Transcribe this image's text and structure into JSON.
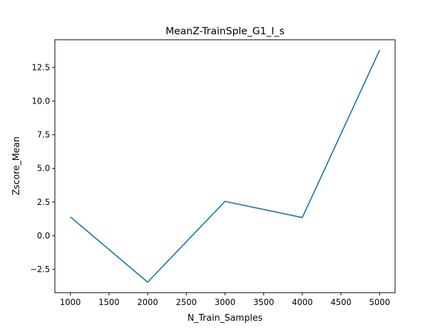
{
  "chart_data": {
    "type": "line",
    "title": "MeanZ-TrainSple_G1_I_s",
    "xlabel": "N_Train_Samples",
    "ylabel": "Zscore_Mean",
    "x": [
      1000,
      2000,
      3000,
      4000,
      5000
    ],
    "series": [
      {
        "values": [
          1.4,
          -3.45,
          2.55,
          1.35,
          13.78
        ],
        "color": "#1f77b4"
      }
    ],
    "xlim": [
      800,
      5200
    ],
    "ylim": [
      -4.23,
      14.55
    ],
    "xticks": [
      1000,
      1500,
      2000,
      2500,
      3000,
      3500,
      4000,
      4500,
      5000
    ],
    "xtick_labels": [
      "1000",
      "1500",
      "2000",
      "2500",
      "3000",
      "3500",
      "4000",
      "4500",
      "5000"
    ],
    "yticks": [
      -2.5,
      0.0,
      2.5,
      5.0,
      7.5,
      10.0,
      12.5
    ],
    "ytick_labels": [
      "−2.5",
      "0.0",
      "2.5",
      "5.0",
      "7.5",
      "10.0",
      "12.5"
    ],
    "grid": false,
    "legend": false
  }
}
